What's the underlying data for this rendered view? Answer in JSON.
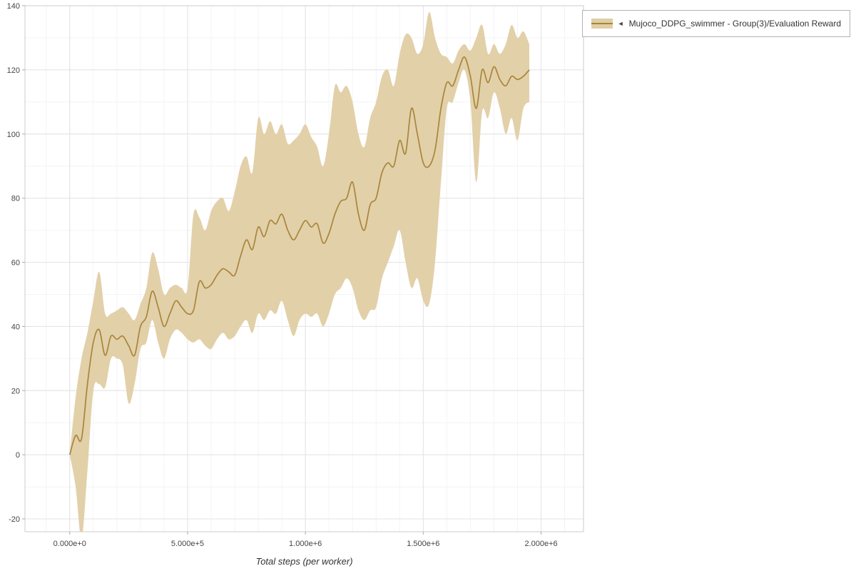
{
  "legend": {
    "marker": "◄",
    "label": "Mujoco_DDPG_swimmer - Group(3)/Evaluation Reward"
  },
  "colors": {
    "line": "#a8853a",
    "band": "#e0cea4",
    "grid_major": "#e3e3e3",
    "grid_minor": "#f4f4f4",
    "axis": "#cccccc",
    "tick": "#aaaaaa",
    "tick_text": "#444444",
    "title_text": "#333333"
  },
  "chart_data": {
    "type": "line",
    "title": "",
    "xlabel": "Total steps (per worker)",
    "ylabel": "",
    "xlim": [
      -190000,
      2180000
    ],
    "ylim": [
      -24,
      140
    ],
    "grid": "on",
    "legend_position": "top-right-outside",
    "x_minor_step": 100000,
    "y_minor_step": 10,
    "x_ticks": [
      {
        "value": 0,
        "label": "0.000e+0"
      },
      {
        "value": 500000,
        "label": "5.000e+5"
      },
      {
        "value": 1000000,
        "label": "1.000e+6"
      },
      {
        "value": 1500000,
        "label": "1.500e+6"
      },
      {
        "value": 2000000,
        "label": "2.000e+6"
      }
    ],
    "y_ticks": [
      {
        "value": -20,
        "label": "-20"
      },
      {
        "value": 0,
        "label": "0"
      },
      {
        "value": 20,
        "label": "20"
      },
      {
        "value": 40,
        "label": "40"
      },
      {
        "value": 60,
        "label": "60"
      },
      {
        "value": 80,
        "label": "80"
      },
      {
        "value": 100,
        "label": "100"
      },
      {
        "value": 120,
        "label": "120"
      },
      {
        "value": 140,
        "label": "140"
      }
    ],
    "series": [
      {
        "name": "Mujoco_DDPG_swimmer - Group(3)/Evaluation Reward",
        "x": [
          0,
          25000,
          50000,
          75000,
          100000,
          125000,
          150000,
          175000,
          200000,
          225000,
          250000,
          275000,
          300000,
          325000,
          350000,
          375000,
          400000,
          425000,
          450000,
          475000,
          500000,
          525000,
          550000,
          575000,
          600000,
          625000,
          650000,
          675000,
          700000,
          725000,
          750000,
          775000,
          800000,
          825000,
          850000,
          875000,
          900000,
          925000,
          950000,
          975000,
          1000000,
          1025000,
          1050000,
          1075000,
          1100000,
          1125000,
          1150000,
          1175000,
          1200000,
          1225000,
          1250000,
          1275000,
          1300000,
          1325000,
          1350000,
          1375000,
          1400000,
          1425000,
          1450000,
          1475000,
          1500000,
          1525000,
          1550000,
          1575000,
          1600000,
          1625000,
          1650000,
          1675000,
          1700000,
          1725000,
          1750000,
          1775000,
          1800000,
          1825000,
          1850000,
          1875000,
          1900000,
          1925000,
          1950000
        ],
        "mean": [
          0,
          6,
          5,
          22,
          35,
          39,
          31,
          37,
          36,
          37,
          34,
          31,
          40,
          43,
          51,
          46,
          40,
          44,
          48,
          46,
          44,
          45,
          54,
          52,
          53,
          56,
          58,
          57,
          56,
          62,
          67,
          64,
          71,
          68,
          73,
          72,
          75,
          70,
          67,
          70,
          73,
          71,
          72,
          66,
          69,
          75,
          79,
          80,
          85,
          75,
          70,
          78,
          80,
          88,
          91,
          90,
          98,
          94,
          108,
          100,
          91,
          90,
          95,
          108,
          116,
          115,
          120,
          124,
          118,
          108,
          120,
          116,
          121,
          117,
          115,
          118,
          117,
          118,
          120
        ],
        "lower": [
          0,
          -10,
          -26,
          -5,
          20,
          22,
          21,
          30,
          30,
          28,
          16,
          22,
          33,
          35,
          42,
          35,
          30,
          36,
          39,
          38,
          36,
          35,
          36,
          34,
          33,
          36,
          38,
          36,
          37,
          40,
          42,
          38,
          44,
          42,
          45,
          44,
          48,
          42,
          37,
          42,
          44,
          43,
          44,
          40,
          44,
          50,
          52,
          55,
          52,
          45,
          42,
          45,
          46,
          55,
          60,
          65,
          70,
          60,
          52,
          55,
          48,
          47,
          60,
          85,
          108,
          110,
          116,
          120,
          110,
          85,
          107,
          105,
          113,
          108,
          100,
          105,
          98,
          108,
          110
        ],
        "upper": [
          0,
          18,
          30,
          38,
          48,
          57,
          44,
          44,
          45,
          46,
          44,
          42,
          47,
          52,
          63,
          58,
          50,
          52,
          53,
          52,
          52,
          75,
          74,
          70,
          76,
          79,
          80,
          76,
          82,
          90,
          93,
          88,
          105,
          100,
          104,
          100,
          103,
          97,
          98,
          100,
          103,
          99,
          96,
          90,
          100,
          115,
          113,
          115,
          110,
          100,
          96,
          105,
          110,
          118,
          120,
          115,
          125,
          131,
          130,
          125,
          128,
          138,
          130,
          125,
          124,
          122,
          126,
          128,
          126,
          130,
          134,
          125,
          128,
          125,
          128,
          134,
          130,
          132,
          128
        ]
      }
    ]
  }
}
